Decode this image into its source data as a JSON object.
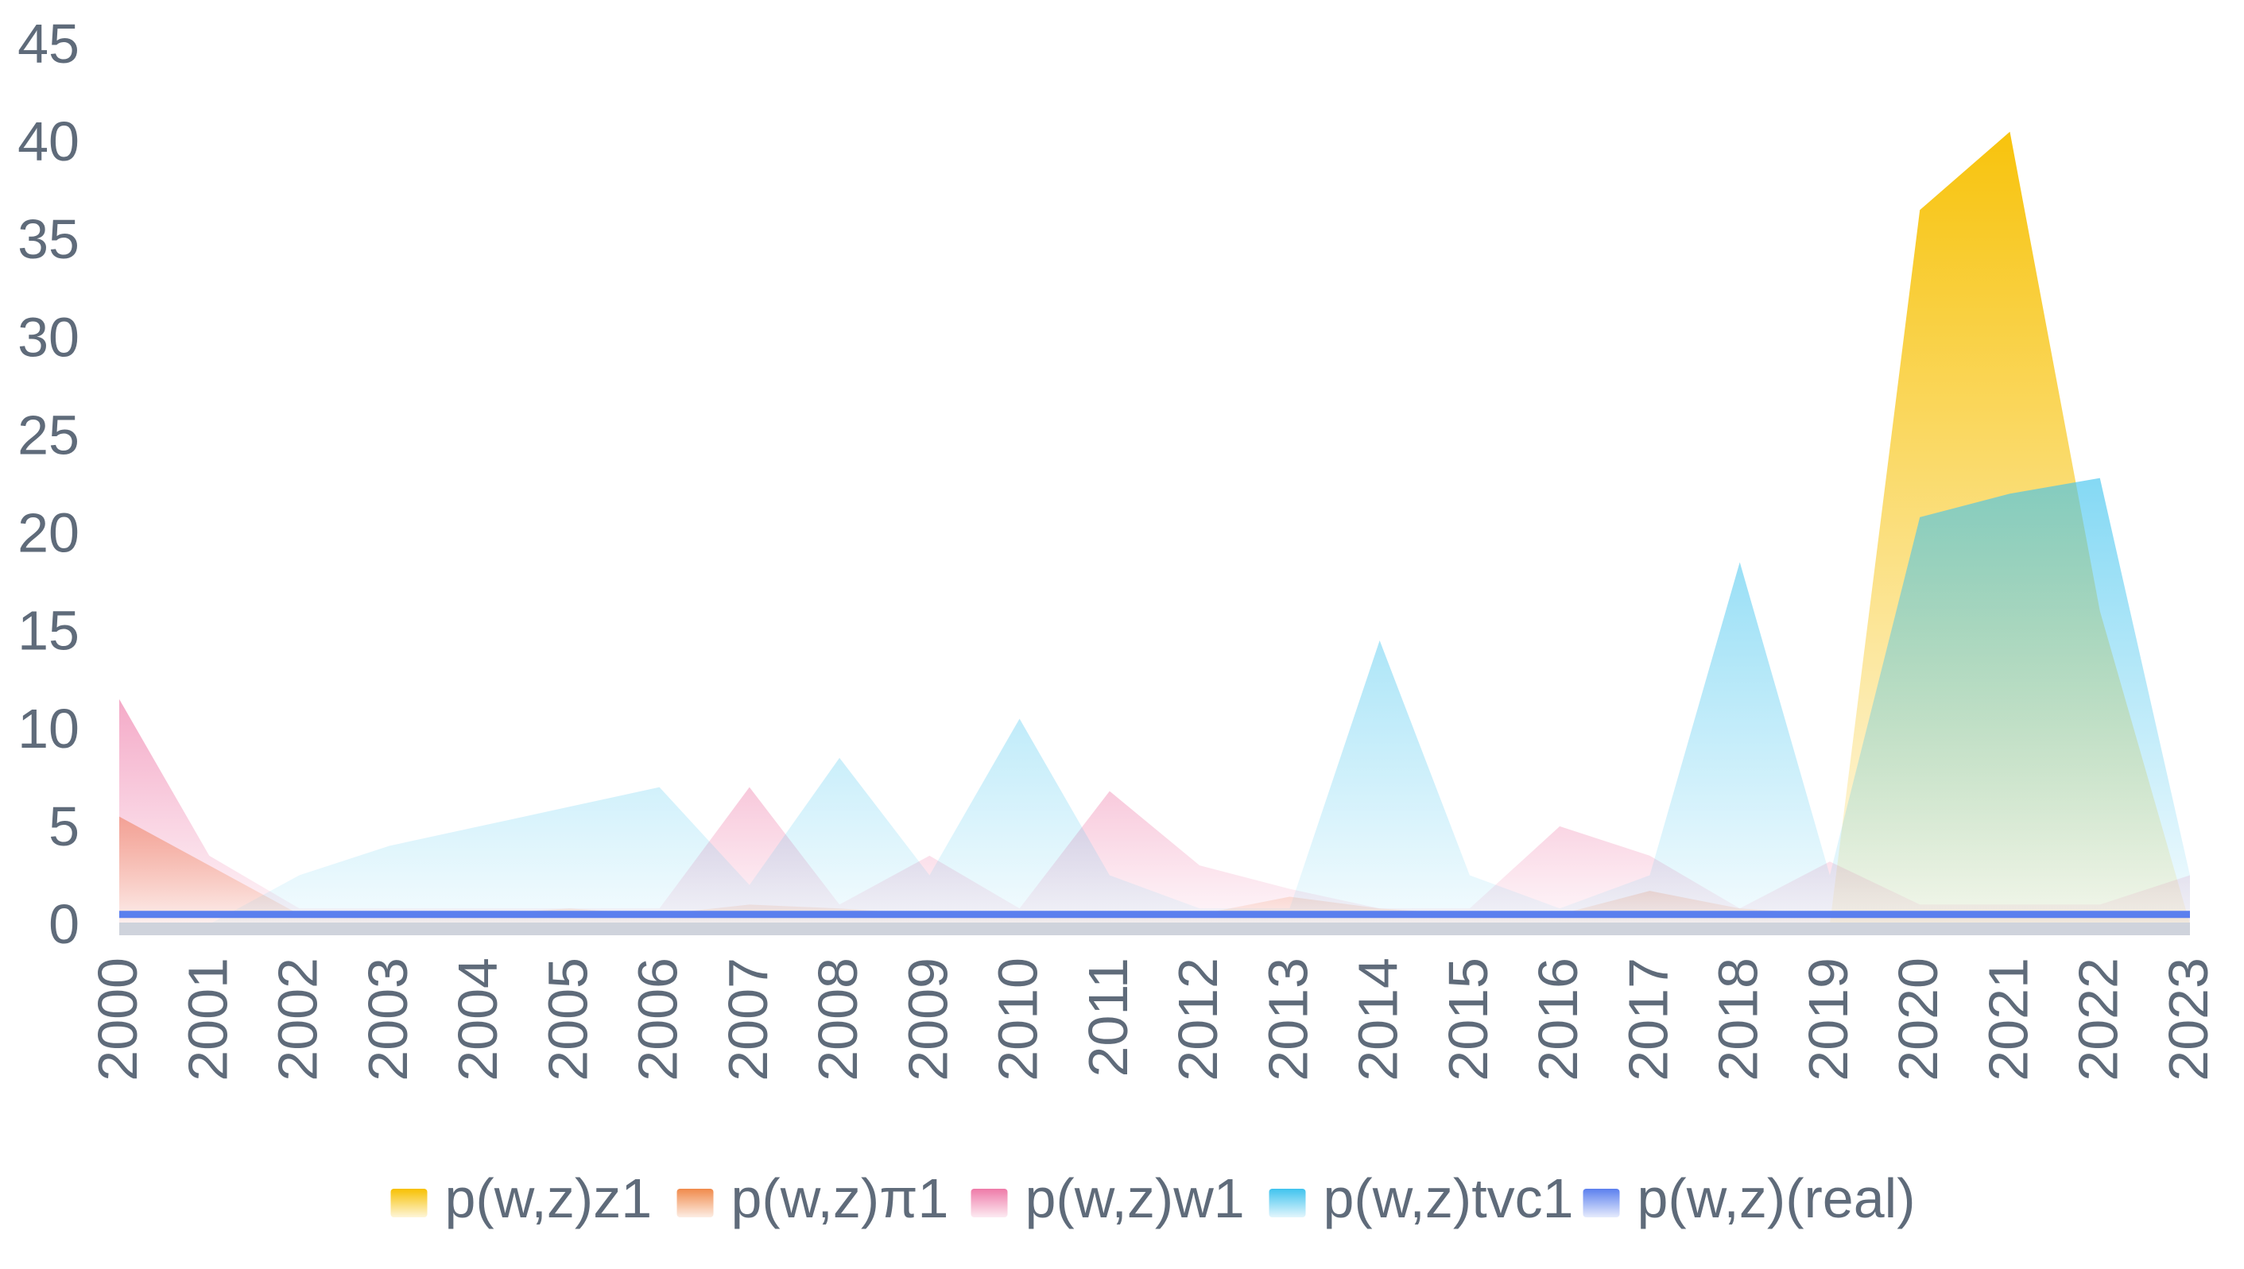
{
  "chart_data": {
    "type": "area",
    "title": "",
    "xlabel": "",
    "ylabel": "",
    "x": [
      "2000",
      "2001",
      "2002",
      "2003",
      "2004",
      "2005",
      "2006",
      "2007",
      "2008",
      "2009",
      "2010",
      "2011",
      "2012",
      "2013",
      "2014",
      "2015",
      "2016",
      "2017",
      "2018",
      "2019",
      "2020",
      "2021",
      "2022",
      "2023"
    ],
    "ylim": [
      0,
      45
    ],
    "yticks": [
      "0",
      "5",
      "10",
      "15",
      "20",
      "25",
      "30",
      "35",
      "40",
      "45"
    ],
    "grid": false,
    "legend_position": "bottom",
    "series": [
      {
        "name": "p(w,z)z1",
        "color": "#f7c000",
        "values": [
          0,
          0,
          0,
          0,
          0,
          0,
          0,
          0,
          0,
          0,
          0,
          0,
          0,
          0,
          0,
          0,
          0,
          0,
          0,
          0,
          36.5,
          40.5,
          16,
          0
        ]
      },
      {
        "name": "p(w,z)π1",
        "color": "#f08a4b",
        "values": [
          5.5,
          3,
          0.5,
          0.5,
          0.5,
          0.8,
          0.5,
          1,
          0.8,
          0.5,
          0.5,
          0.5,
          0.5,
          1.4,
          0.8,
          0.5,
          0.5,
          1.7,
          0.8,
          0.5,
          0.5,
          0.5,
          0.5,
          0.5
        ]
      },
      {
        "name": "p(w,z)w1",
        "color": "#ee7aa8",
        "values": [
          11.5,
          3.5,
          0.8,
          0.8,
          0.8,
          0.8,
          0.8,
          7,
          1,
          3.5,
          0.8,
          6.8,
          3,
          1.8,
          0.8,
          0.8,
          5,
          3.5,
          0.8,
          3.2,
          1,
          1,
          1,
          2.5
        ]
      },
      {
        "name": "p(w,z)tvc1",
        "color": "#3fc3ee",
        "values": [
          0,
          0,
          2.5,
          4,
          5,
          6,
          7,
          2,
          8.5,
          2.5,
          10.5,
          2.5,
          0.8,
          0.8,
          14.5,
          2.5,
          0.8,
          2.5,
          18.5,
          2.5,
          20.8,
          22,
          22.8,
          2.5
        ]
      },
      {
        "name": "p(w,z)(real)",
        "color": "#5b7fee",
        "values": [
          0.5,
          0.5,
          0.5,
          0.5,
          0.5,
          0.5,
          0.5,
          0.5,
          0.5,
          0.5,
          0.5,
          0.5,
          0.5,
          0.5,
          0.5,
          0.5,
          0.5,
          0.5,
          0.5,
          0.5,
          0.5,
          0.5,
          0.5,
          0.5
        ]
      }
    ]
  }
}
